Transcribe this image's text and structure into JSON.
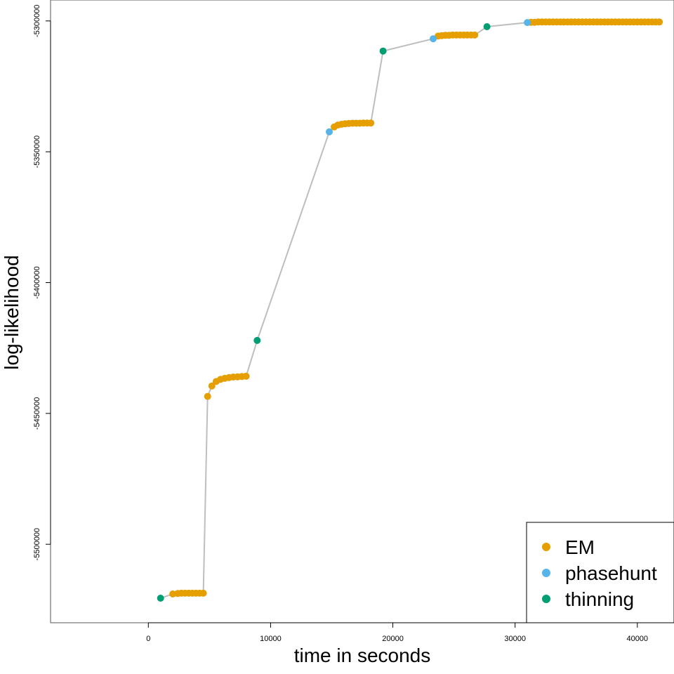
{
  "chart_data": {
    "type": "scatter",
    "title": "",
    "xlabel": "time in seconds",
    "ylabel": "log-likelihood",
    "xlim": [
      -8000,
      43000
    ],
    "ylim": [
      -5530000,
      -5292000
    ],
    "xticks": [
      0,
      10000,
      20000,
      30000,
      40000
    ],
    "xtick_labels": [
      "0",
      "10000",
      "20000",
      "30000",
      "40000"
    ],
    "yticks": [
      -5500000,
      -5450000,
      -5400000,
      -5350000,
      -5300000
    ],
    "ytick_labels": [
      "-5500000",
      "-5450000",
      "-5400000",
      "-5350000",
      "-5300000"
    ],
    "line_color": "#bebebe",
    "grid": false,
    "legend_position": "bottom-right",
    "series": [
      {
        "name": "EM",
        "color": "#E69F00",
        "points": [
          [
            2000,
            -5519000
          ],
          [
            2400,
            -5518800
          ],
          [
            2700,
            -5518700
          ],
          [
            3000,
            -5518700
          ],
          [
            3300,
            -5518700
          ],
          [
            3600,
            -5518700
          ],
          [
            3900,
            -5518700
          ],
          [
            4200,
            -5518700
          ],
          [
            4500,
            -5518700
          ],
          [
            4850,
            -5443500
          ],
          [
            5200,
            -5439500
          ],
          [
            5550,
            -5437800
          ],
          [
            5900,
            -5437000
          ],
          [
            6250,
            -5436600
          ],
          [
            6600,
            -5436300
          ],
          [
            6950,
            -5436100
          ],
          [
            7300,
            -5436000
          ],
          [
            7650,
            -5435900
          ],
          [
            8000,
            -5435800
          ],
          [
            15200,
            -5340500
          ],
          [
            15500,
            -5339800
          ],
          [
            15800,
            -5339500
          ],
          [
            16100,
            -5339300
          ],
          [
            16400,
            -5339200
          ],
          [
            16700,
            -5339100
          ],
          [
            17000,
            -5339100
          ],
          [
            17300,
            -5339100
          ],
          [
            17600,
            -5339000
          ],
          [
            17900,
            -5339000
          ],
          [
            18200,
            -5339000
          ],
          [
            23700,
            -5305800
          ],
          [
            24000,
            -5305600
          ],
          [
            24300,
            -5305500
          ],
          [
            24600,
            -5305500
          ],
          [
            24900,
            -5305400
          ],
          [
            25200,
            -5305400
          ],
          [
            25500,
            -5305400
          ],
          [
            25800,
            -5305400
          ],
          [
            26100,
            -5305400
          ],
          [
            26400,
            -5305400
          ],
          [
            26700,
            -5305400
          ],
          [
            31300,
            -5300500
          ],
          [
            31600,
            -5300500
          ],
          [
            31900,
            -5300400
          ],
          [
            32200,
            -5300400
          ],
          [
            32500,
            -5300400
          ],
          [
            32800,
            -5300400
          ],
          [
            33100,
            -5300400
          ],
          [
            33400,
            -5300400
          ],
          [
            33700,
            -5300400
          ],
          [
            34000,
            -5300400
          ],
          [
            34300,
            -5300400
          ],
          [
            34600,
            -5300400
          ],
          [
            34900,
            -5300400
          ],
          [
            35200,
            -5300400
          ],
          [
            35500,
            -5300400
          ],
          [
            35800,
            -5300400
          ],
          [
            36100,
            -5300400
          ],
          [
            36400,
            -5300400
          ],
          [
            36700,
            -5300400
          ],
          [
            37000,
            -5300400
          ],
          [
            37300,
            -5300400
          ],
          [
            37600,
            -5300400
          ],
          [
            37900,
            -5300400
          ],
          [
            38200,
            -5300400
          ],
          [
            38500,
            -5300400
          ],
          [
            38800,
            -5300400
          ],
          [
            39100,
            -5300400
          ],
          [
            39400,
            -5300400
          ],
          [
            39700,
            -5300400
          ],
          [
            40000,
            -5300400
          ],
          [
            40300,
            -5300400
          ],
          [
            40600,
            -5300400
          ],
          [
            40900,
            -5300400
          ],
          [
            41200,
            -5300400
          ],
          [
            41500,
            -5300400
          ],
          [
            41800,
            -5300400
          ]
        ]
      },
      {
        "name": "phasehunt",
        "color": "#56B4E9",
        "points": [
          [
            14800,
            -5342400
          ],
          [
            23300,
            -5306800
          ],
          [
            31000,
            -5300600
          ]
        ]
      },
      {
        "name": "thinning",
        "color": "#009E73",
        "points": [
          [
            1000,
            -5520600
          ],
          [
            8900,
            -5422100
          ],
          [
            19200,
            -5311500
          ],
          [
            27700,
            -5302200
          ]
        ]
      }
    ],
    "path_order": [
      [
        1000,
        -5520600
      ],
      [
        2000,
        -5519000
      ],
      [
        2400,
        -5518800
      ],
      [
        2700,
        -5518700
      ],
      [
        3000,
        -5518700
      ],
      [
        3300,
        -5518700
      ],
      [
        3600,
        -5518700
      ],
      [
        3900,
        -5518700
      ],
      [
        4200,
        -5518700
      ],
      [
        4500,
        -5518700
      ],
      [
        4850,
        -5443500
      ],
      [
        5200,
        -5439500
      ],
      [
        5550,
        -5437800
      ],
      [
        5900,
        -5437000
      ],
      [
        6250,
        -5436600
      ],
      [
        6600,
        -5436300
      ],
      [
        6950,
        -5436100
      ],
      [
        7300,
        -5436000
      ],
      [
        7650,
        -5435900
      ],
      [
        8000,
        -5435800
      ],
      [
        8900,
        -5422100
      ],
      [
        14800,
        -5342400
      ],
      [
        15200,
        -5340500
      ],
      [
        15500,
        -5339800
      ],
      [
        15800,
        -5339500
      ],
      [
        16100,
        -5339300
      ],
      [
        16400,
        -5339200
      ],
      [
        16700,
        -5339100
      ],
      [
        17000,
        -5339100
      ],
      [
        17300,
        -5339100
      ],
      [
        17600,
        -5339000
      ],
      [
        17900,
        -5339000
      ],
      [
        18200,
        -5339000
      ],
      [
        19200,
        -5311500
      ],
      [
        23300,
        -5306800
      ],
      [
        23700,
        -5305800
      ],
      [
        24000,
        -5305600
      ],
      [
        24300,
        -5305500
      ],
      [
        24600,
        -5305500
      ],
      [
        24900,
        -5305400
      ],
      [
        25200,
        -5305400
      ],
      [
        25500,
        -5305400
      ],
      [
        25800,
        -5305400
      ],
      [
        26100,
        -5305400
      ],
      [
        26400,
        -5305400
      ],
      [
        26700,
        -5305400
      ],
      [
        27700,
        -5302200
      ],
      [
        31000,
        -5300600
      ],
      [
        31300,
        -5300500
      ],
      [
        41800,
        -5300400
      ]
    ]
  }
}
